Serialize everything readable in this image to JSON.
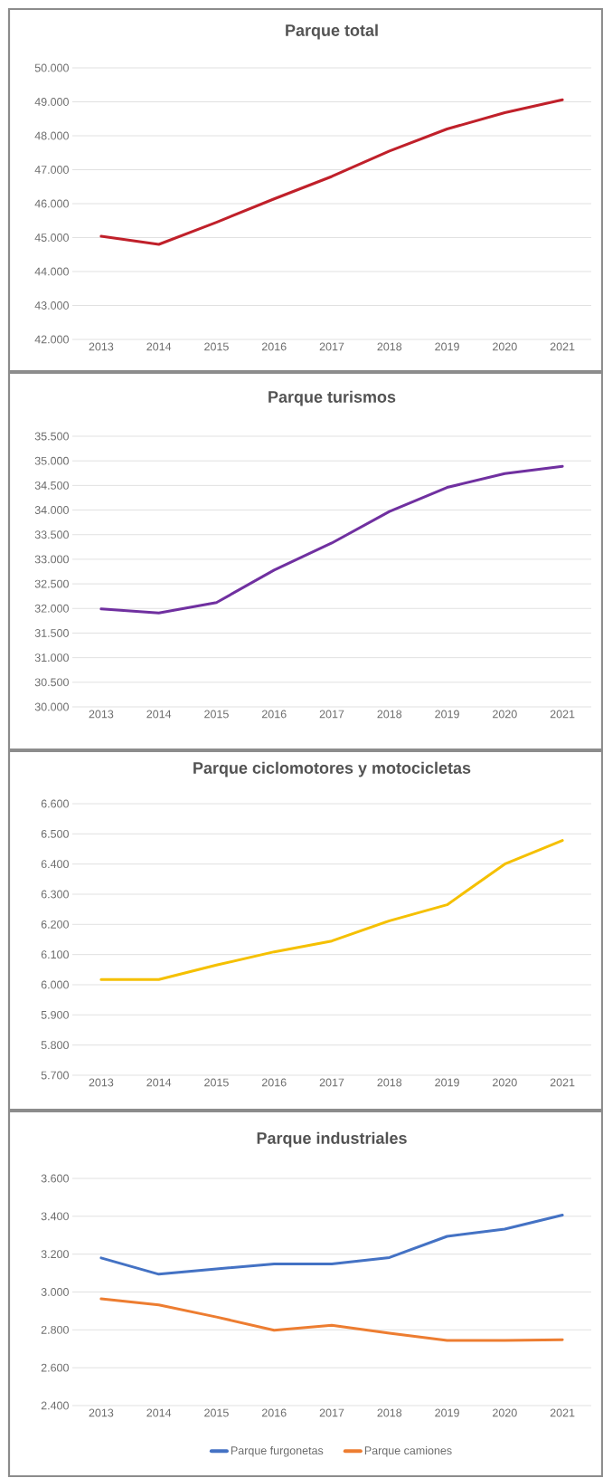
{
  "chart_data": [
    {
      "type": "line",
      "title": "Parque total",
      "categories": [
        "2013",
        "2014",
        "2015",
        "2016",
        "2017",
        "2018",
        "2019",
        "2020",
        "2021"
      ],
      "series": [
        {
          "color": "#c0202a",
          "values": [
            45040,
            44800,
            45450,
            46140,
            46800,
            47550,
            48200,
            48680,
            49060
          ]
        }
      ],
      "ylim": [
        42000,
        50000
      ],
      "yticks": [
        {
          "value": 42000,
          "label": "42.000"
        },
        {
          "value": 43000,
          "label": "43.000"
        },
        {
          "value": 44000,
          "label": "44.000"
        },
        {
          "value": 45000,
          "label": "45.000"
        },
        {
          "value": 46000,
          "label": "46.000"
        },
        {
          "value": 47000,
          "label": "47.000"
        },
        {
          "value": 48000,
          "label": "48.000"
        },
        {
          "value": 49000,
          "label": "49.000"
        },
        {
          "value": 50000,
          "label": "50.000"
        }
      ],
      "grid": "y"
    },
    {
      "type": "line",
      "title": "Parque turismos",
      "categories": [
        "2013",
        "2014",
        "2015",
        "2016",
        "2017",
        "2018",
        "2019",
        "2020",
        "2021"
      ],
      "series": [
        {
          "color": "#7030a0",
          "values": [
            31990,
            31910,
            32120,
            32780,
            33330,
            33970,
            34460,
            34740,
            34890
          ]
        }
      ],
      "ylim": [
        30000,
        35500
      ],
      "yticks": [
        {
          "value": 30000,
          "label": "30.000"
        },
        {
          "value": 30500,
          "label": "30.500"
        },
        {
          "value": 31000,
          "label": "31.000"
        },
        {
          "value": 31500,
          "label": "31.500"
        },
        {
          "value": 32000,
          "label": "32.000"
        },
        {
          "value": 32500,
          "label": "32.500"
        },
        {
          "value": 33000,
          "label": "33.000"
        },
        {
          "value": 33500,
          "label": "33.500"
        },
        {
          "value": 34000,
          "label": "34.000"
        },
        {
          "value": 34500,
          "label": "34.500"
        },
        {
          "value": 35000,
          "label": "35.000"
        },
        {
          "value": 35500,
          "label": "35.500"
        }
      ],
      "grid": "y"
    },
    {
      "type": "line",
      "title": "Parque ciclomotores y motocicletas",
      "categories": [
        "2013",
        "2014",
        "2015",
        "2016",
        "2017",
        "2018",
        "2019",
        "2020",
        "2021"
      ],
      "series": [
        {
          "color": "#f5c000",
          "values": [
            6017,
            6017,
            6065,
            6109,
            6145,
            6212,
            6265,
            6400,
            6478
          ]
        }
      ],
      "ylim": [
        5700,
        6600
      ],
      "yticks": [
        {
          "value": 5700,
          "label": "5.700"
        },
        {
          "value": 5800,
          "label": "5.800"
        },
        {
          "value": 5900,
          "label": "5.900"
        },
        {
          "value": 6000,
          "label": "6.000"
        },
        {
          "value": 6100,
          "label": "6.100"
        },
        {
          "value": 6200,
          "label": "6.200"
        },
        {
          "value": 6300,
          "label": "6.300"
        },
        {
          "value": 6400,
          "label": "6.400"
        },
        {
          "value": 6500,
          "label": "6.500"
        },
        {
          "value": 6600,
          "label": "6.600"
        }
      ],
      "grid": "y"
    },
    {
      "type": "line",
      "title": "Parque industriales",
      "categories": [
        "2013",
        "2014",
        "2015",
        "2016",
        "2017",
        "2018",
        "2019",
        "2020",
        "2021"
      ],
      "series": [
        {
          "name": "Parque furgonetas",
          "color": "#4472c4",
          "values": [
            3180,
            3094,
            3122,
            3148,
            3148,
            3182,
            3294,
            3332,
            3406
          ]
        },
        {
          "name": "Parque camiones",
          "color": "#ed7d31",
          "values": [
            2964,
            2932,
            2868,
            2798,
            2824,
            2782,
            2744,
            2744,
            2748
          ]
        }
      ],
      "ylim": [
        2400,
        3600
      ],
      "yticks": [
        {
          "value": 2400,
          "label": "2.400"
        },
        {
          "value": 2600,
          "label": "2.600"
        },
        {
          "value": 2800,
          "label": "2.800"
        },
        {
          "value": 3000,
          "label": "3.000"
        },
        {
          "value": 3200,
          "label": "3.200"
        },
        {
          "value": 3400,
          "label": "3.400"
        },
        {
          "value": 3600,
          "label": "3.600"
        }
      ],
      "grid": "y",
      "legend": "bottom"
    }
  ]
}
